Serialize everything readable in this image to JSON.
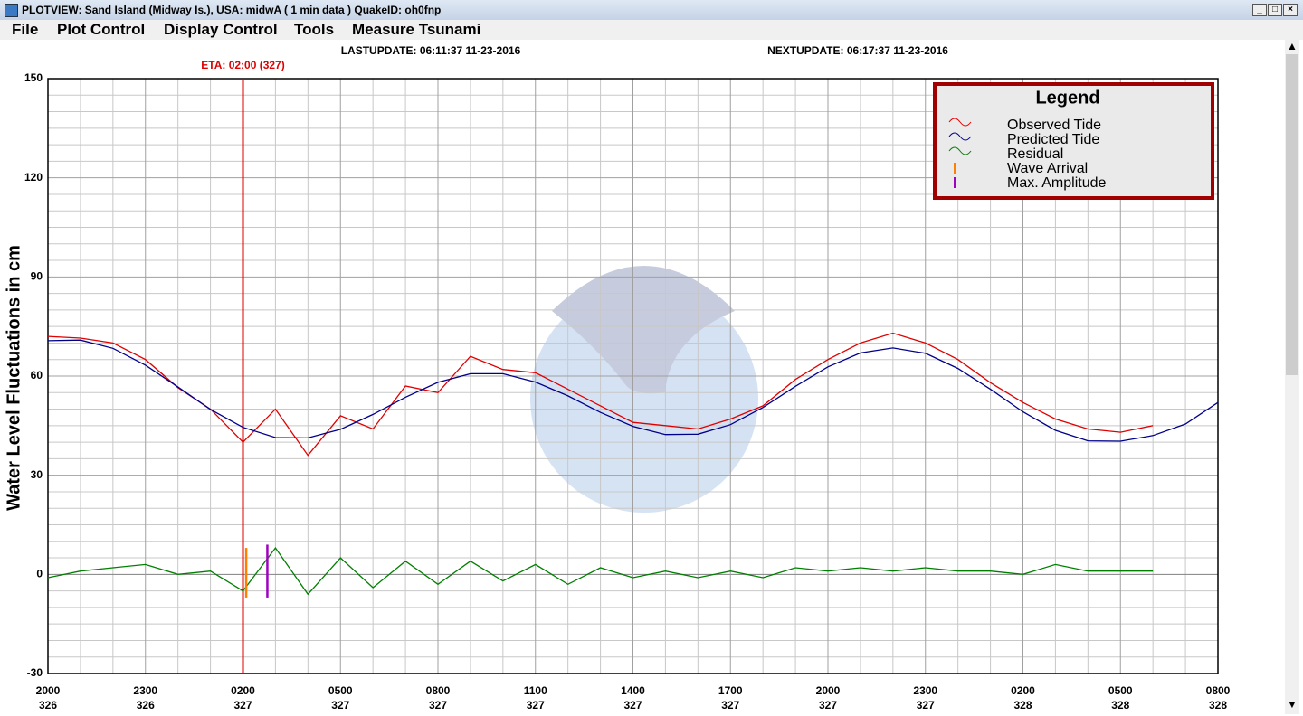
{
  "window": {
    "title": "PLOTVIEW:  Sand Island (Midway Is.), USA: midwA ( 1 min data )   QuakeID: oh0fnp",
    "menu": [
      "File",
      "Plot Control",
      "Display Control",
      "Tools",
      "Measure Tsunami"
    ],
    "last_update": "LASTUPDATE: 06:11:37 11-23-2016",
    "next_update": "NEXTUPDATE: 06:17:37 11-23-2016"
  },
  "chart_data": {
    "type": "line",
    "ylabel": "Water Level Fluctuations in cm",
    "legend_title": "Legend",
    "legend_position": "upper right",
    "grid": true,
    "x": [
      0,
      1,
      2,
      3,
      4,
      5,
      6,
      7,
      8,
      9,
      10,
      11,
      12,
      13,
      14,
      15,
      16,
      17,
      18,
      19,
      20,
      21,
      22,
      23,
      24,
      25,
      26,
      27,
      28,
      29,
      30,
      31,
      32,
      33,
      34,
      35,
      36
    ],
    "xlim": [
      0,
      36
    ],
    "xticks": [
      {
        "value": 0,
        "label": "2000"
      },
      {
        "value": 3,
        "label": "2300"
      },
      {
        "value": 6,
        "label": "0200"
      },
      {
        "value": 9,
        "label": "0500"
      },
      {
        "value": 12,
        "label": "0800"
      },
      {
        "value": 15,
        "label": "1100"
      },
      {
        "value": 18,
        "label": "1400"
      },
      {
        "value": 21,
        "label": "1700"
      },
      {
        "value": 24,
        "label": "2000"
      },
      {
        "value": 27,
        "label": "2300"
      },
      {
        "value": 30,
        "label": "0200"
      },
      {
        "value": 33,
        "label": "0500"
      },
      {
        "value": 36,
        "label": "0800"
      }
    ],
    "xtick_sublabels": [
      "326",
      "326",
      "327",
      "327",
      "327",
      "327",
      "327",
      "327",
      "327",
      "327",
      "328",
      "328",
      "328"
    ],
    "ylim": [
      -30,
      150
    ],
    "yticks": [
      -30,
      0,
      30,
      60,
      90,
      120,
      150
    ],
    "series": [
      {
        "name": "Observed Tide",
        "color": "#e00000",
        "values": [
          72,
          71.5,
          70,
          65,
          56.5,
          50,
          40,
          50,
          36,
          48,
          44,
          57,
          55,
          66,
          62,
          61,
          56,
          51,
          46,
          45,
          44,
          47,
          51,
          59,
          65,
          70,
          73,
          70,
          65,
          58,
          52,
          47,
          44,
          43,
          45,
          null,
          null
        ]
      },
      {
        "name": "Predicted Tide",
        "color": "#00008b",
        "values": [
          70.7,
          70.9,
          68.4,
          63.3,
          56.7,
          49.9,
          44.5,
          41.4,
          41.3,
          43.9,
          48.4,
          53.6,
          58.1,
          60.7,
          60.7,
          58.2,
          54,
          49,
          44.8,
          42.3,
          42.4,
          45.3,
          50.5,
          56.9,
          62.8,
          67,
          68.5,
          66.9,
          62.3,
          56,
          49.2,
          43.6,
          40.4,
          40.3,
          42,
          45.5,
          52
        ]
      },
      {
        "name": "Residual",
        "color": "#008000",
        "values": [
          -1,
          1,
          2,
          3,
          0,
          1,
          -5,
          8,
          -6,
          5,
          -4,
          4,
          -3,
          4,
          -2,
          3,
          -3,
          2,
          -1,
          1,
          -1,
          1,
          -1,
          2,
          1,
          2,
          1,
          2,
          1,
          1,
          0,
          3,
          1,
          1,
          1,
          null,
          null
        ]
      }
    ],
    "markers": [
      {
        "name": "Wave Arrival",
        "color": "#ff8000",
        "x": 6.1,
        "low": -7,
        "high": 8
      },
      {
        "name": "Max. Amplitude",
        "color": "#a000c0",
        "x": 6.75,
        "low": -7,
        "high": 9
      }
    ],
    "eta": {
      "label": "ETA: 02:00 (327)",
      "x": 6,
      "color": "#e00000"
    }
  }
}
